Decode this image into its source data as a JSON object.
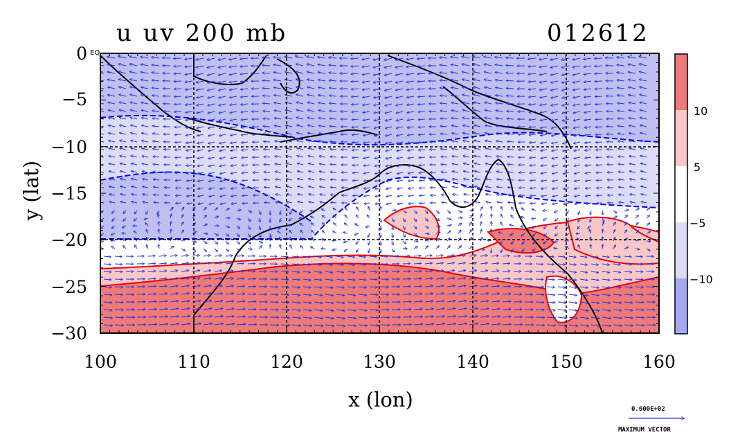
{
  "title": {
    "field": "u uv 200 mb",
    "date": "012612"
  },
  "axes": {
    "xlabel": "x (lon)",
    "ylabel": "y (lat)",
    "xticks": [
      "100",
      "110",
      "120",
      "130",
      "140",
      "150",
      "160"
    ],
    "yticks": [
      "0",
      "−5",
      "−10",
      "−15",
      "−20",
      "−25",
      "−30"
    ]
  },
  "eq_label": "EQ",
  "colorbar": {
    "labels": [
      "10",
      "5",
      "−5",
      "−10"
    ],
    "colors": [
      "#ee7a7a",
      "#f8c8c8",
      "#ffffff",
      "#dcdcf6",
      "#a8a8ee"
    ]
  },
  "vector_key": {
    "value": "0.600E+02",
    "label": "MAXIMUM VECTOR"
  },
  "chart_data": {
    "type": "heatmap",
    "xlim": [
      100,
      160
    ],
    "ylim": [
      -30,
      0
    ],
    "grid": true,
    "contour_colors": {
      "negative": "#0000ee",
      "positive": "#ee0000"
    }
  }
}
